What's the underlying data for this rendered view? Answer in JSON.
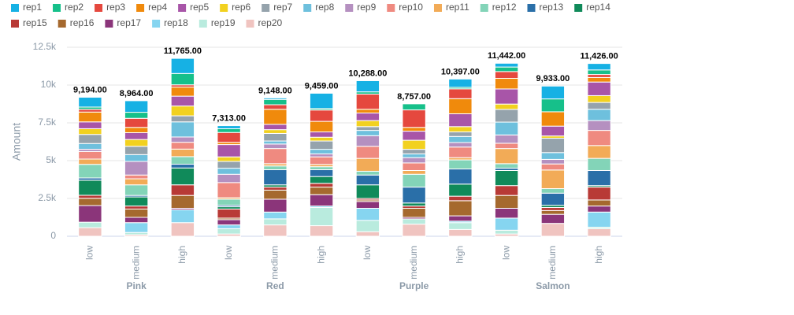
{
  "chart_data": {
    "type": "stacked_bar",
    "y_label": "Amount",
    "categories": [
      "low",
      "medium",
      "high",
      "low",
      "medium",
      "high",
      "low",
      "medium",
      "high",
      "low",
      "medium",
      "high"
    ],
    "groups": [
      "Pink",
      "Red",
      "Purple",
      "Salmon"
    ],
    "ylim": [
      0,
      12500
    ],
    "yticks": [
      0,
      {
        "value": 2500,
        "label": "2.5k"
      },
      {
        "value": 5000,
        "label": "5k"
      },
      {
        "value": 7500,
        "label": "7.5k"
      },
      {
        "value": 10000,
        "label": "10k"
      },
      {
        "value": 12500,
        "label": "12.5k"
      }
    ],
    "grid": true,
    "totals": [
      9194,
      8964,
      11765,
      7313,
      9148,
      9459,
      10288,
      8757,
      10397,
      11442,
      9933,
      11426
    ],
    "total_labels": [
      "9,194.00",
      "8,964.00",
      "11,765.00",
      "7,313.00",
      "9,148.00",
      "9,459.00",
      "10,288.00",
      "8,757.00",
      "10,397.00",
      "11,442.00",
      "9,933.00",
      "11,426.00"
    ],
    "series": [
      {
        "name": "rep1",
        "color": "#16b1e4",
        "values": [
          650,
          764,
          1000,
          200,
          100,
          1009,
          738,
          0,
          547,
          250,
          850,
          426
        ]
      },
      {
        "name": "rep2",
        "color": "#16c08a",
        "values": [
          150,
          400,
          750,
          250,
          350,
          100,
          150,
          400,
          100,
          300,
          850,
          300
        ]
      },
      {
        "name": "rep3",
        "color": "#e5483e",
        "values": [
          180,
          600,
          150,
          650,
          300,
          750,
          1000,
          1157,
          650,
          450,
          0,
          200
        ]
      },
      {
        "name": "rep4",
        "color": "#f08a0c",
        "values": [
          650,
          350,
          600,
          150,
          998,
          700,
          250,
          250,
          1000,
          700,
          950,
          300
        ]
      },
      {
        "name": "rep5",
        "color": "#a855a8",
        "values": [
          450,
          450,
          650,
          813,
          350,
          350,
          500,
          600,
          850,
          1000,
          650,
          900
        ]
      },
      {
        "name": "rep6",
        "color": "#f2d11f",
        "values": [
          380,
          450,
          650,
          300,
          250,
          250,
          400,
          600,
          350,
          350,
          150,
          450
        ]
      },
      {
        "name": "rep7",
        "color": "#95a3ac",
        "values": [
          600,
          550,
          400,
          450,
          500,
          550,
          250,
          300,
          300,
          842,
          950,
          450
        ]
      },
      {
        "name": "rep8",
        "color": "#6ec0dd",
        "values": [
          380,
          450,
          1000,
          400,
          200,
          300,
          350,
          250,
          400,
          850,
          450,
          750
        ]
      },
      {
        "name": "rep9",
        "color": "#b590c0",
        "values": [
          150,
          900,
          350,
          550,
          300,
          200,
          700,
          350,
          300,
          550,
          300,
          650
        ]
      },
      {
        "name": "rep10",
        "color": "#ef8a80",
        "values": [
          500,
          250,
          450,
          1000,
          1000,
          500,
          800,
          500,
          700,
          350,
          400,
          1000
        ]
      },
      {
        "name": "rep11",
        "color": "#f2ab57",
        "values": [
          350,
          400,
          500,
          100,
          150,
          150,
          850,
          250,
          150,
          1000,
          1233,
          850
        ]
      },
      {
        "name": "rep12",
        "color": "#83d4b8",
        "values": [
          900,
          700,
          500,
          400,
          250,
          200,
          250,
          850,
          600,
          300,
          300,
          800
        ]
      },
      {
        "name": "rep13",
        "color": "#2a6fa8",
        "values": [
          150,
          100,
          250,
          100,
          1000,
          450,
          650,
          1050,
          1000,
          150,
          800,
          1000
        ]
      },
      {
        "name": "rep14",
        "color": "#108a5a",
        "values": [
          994,
          600,
          1115,
          150,
          150,
          450,
          900,
          200,
          800,
          1000,
          150,
          100
        ]
      },
      {
        "name": "rep15",
        "color": "#b83a36",
        "values": [
          200,
          200,
          700,
          600,
          200,
          250,
          100,
          150,
          300,
          650,
          200,
          850
        ]
      },
      {
        "name": "rep16",
        "color": "#a5692e",
        "values": [
          480,
          550,
          850,
          100,
          600,
          500,
          100,
          600,
          1000,
          850,
          250,
          400
        ]
      },
      {
        "name": "rep17",
        "color": "#8b357a",
        "values": [
          1100,
          350,
          100,
          350,
          850,
          750,
          450,
          100,
          350,
          650,
          600,
          400
        ]
      },
      {
        "name": "rep18",
        "color": "#86d5f0",
        "values": [
          0,
          650,
          850,
          250,
          450,
          100,
          800,
          0,
          100,
          800,
          0,
          1000
        ]
      },
      {
        "name": "rep19",
        "color": "#b9ebde",
        "values": [
          360,
          150,
          0,
          350,
          400,
          1200,
          750,
          350,
          450,
          250,
          0,
          100
        ]
      },
      {
        "name": "rep20",
        "color": "#f0c4c0",
        "values": [
          570,
          100,
          900,
          150,
          750,
          700,
          300,
          800,
          450,
          150,
          850,
          500
        ]
      }
    ]
  }
}
